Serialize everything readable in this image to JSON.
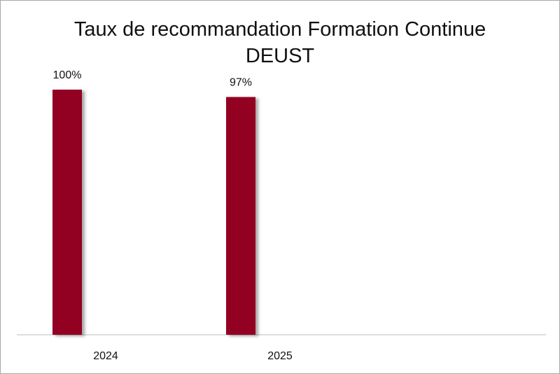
{
  "chart_data": {
    "type": "bar",
    "title": "Taux de recommandation Formation Continue",
    "subtitle": "DEUST",
    "categories": [
      "2024",
      "2025"
    ],
    "values": [
      100,
      97
    ],
    "data_labels": [
      "100%",
      "97%"
    ],
    "ylim": [
      0,
      100
    ],
    "grid": false,
    "legend": "none",
    "bar_color": "#920023"
  }
}
